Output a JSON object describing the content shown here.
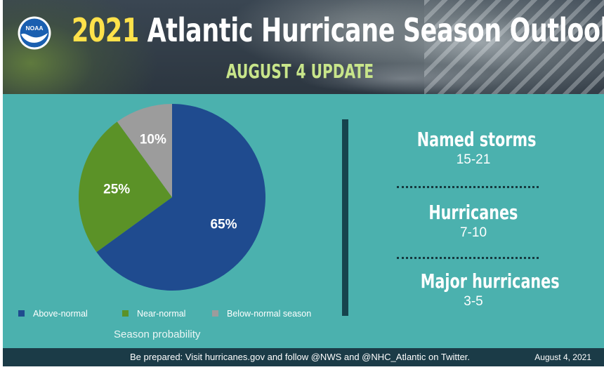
{
  "header": {
    "title_year": "2021",
    "title_rest": "Atlantic Hurricane Season Outlook",
    "subtitle": "AUGUST 4 UPDATE",
    "logo_text": "NOAA"
  },
  "chart_data": {
    "type": "pie",
    "categories": [
      "Above-normal",
      "Near-normal",
      "Below-normal season"
    ],
    "values": [
      65,
      25,
      10
    ],
    "labels": [
      "65%",
      "25%",
      "10%"
    ],
    "colors": [
      "#1f4b8f",
      "#5b9227",
      "#9c9c9c"
    ],
    "xlabel": "Season probability",
    "legend_position": "bottom"
  },
  "stats": [
    {
      "label": "Named storms",
      "value": "15-21"
    },
    {
      "label": "Hurricanes",
      "value": "7-10"
    },
    {
      "label": "Major hurricanes",
      "value": "3-5"
    }
  ],
  "footer": {
    "message": "Be prepared: Visit hurricanes.gov and follow @NWS and @NHC_Atlantic on Twitter.",
    "date": "August 4, 2021"
  }
}
